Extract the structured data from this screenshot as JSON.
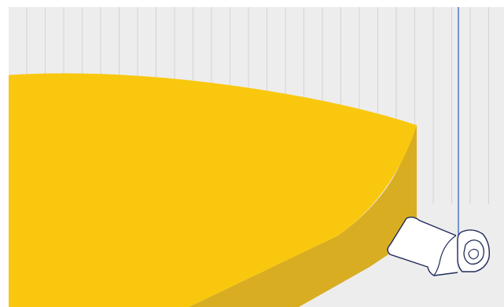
{
  "viewport": {
    "background": "#ededed",
    "ruler_line_color": "#d4d4d4",
    "guide_line_color": "#4a78c8"
  },
  "model": {
    "top_face_color": "#f9c80e",
    "side_face_color": "#d8ad22",
    "edge_color": "#ffffff"
  },
  "profile_sample": {
    "fill_color": "#ffffff",
    "outline_color": "#1f2a5a"
  }
}
